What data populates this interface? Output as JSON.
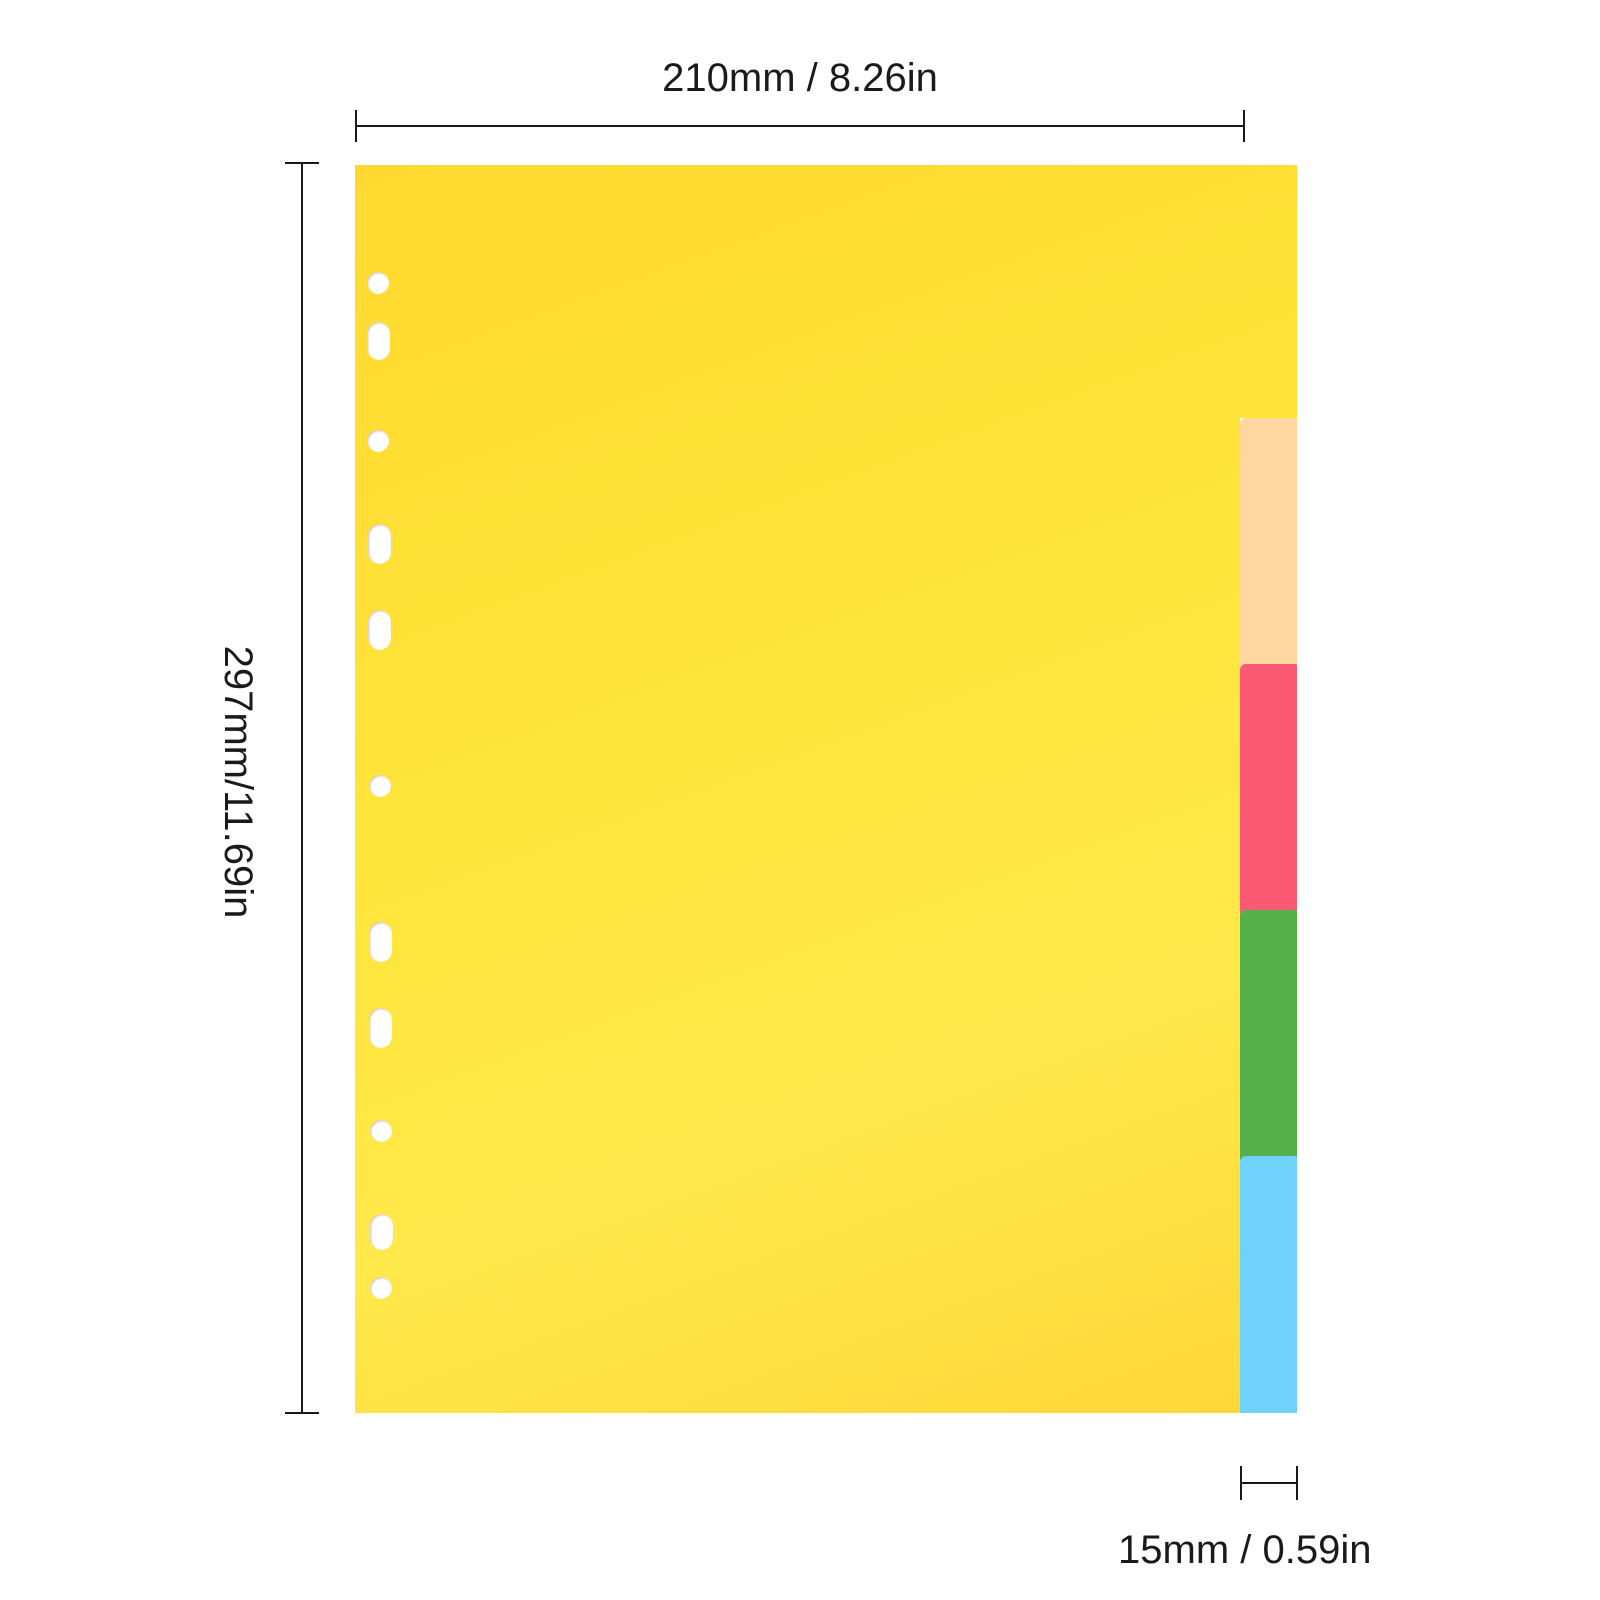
{
  "dimensions": {
    "width_label": "210mm / 8.26in",
    "height_label": "297mm/11.69in",
    "tab_label": "15mm / 0.59in"
  },
  "divider": {
    "sheet_color": "#ffe03a",
    "tab_colors": [
      "#ffd6a0",
      "#fa5a72",
      "#56b04a",
      "#6fd2fb"
    ],
    "hole_count": 11
  }
}
